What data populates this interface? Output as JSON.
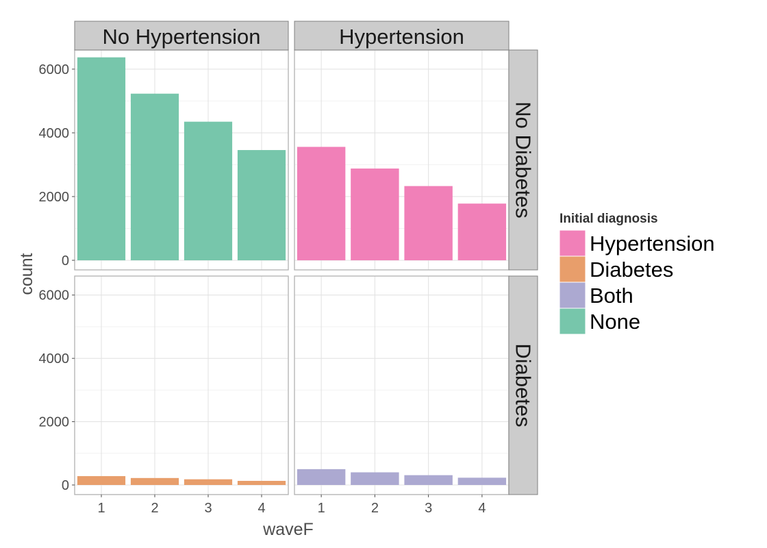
{
  "chart_data": {
    "type": "bar",
    "xlabel": "waveF",
    "ylabel": "count",
    "categories": [
      "1",
      "2",
      "3",
      "4"
    ],
    "ylim": [
      0,
      6600
    ],
    "yticks": [
      0,
      2000,
      4000,
      6000
    ],
    "grid": true,
    "legend_position": "right",
    "facet_columns": [
      "No Hypertension",
      "Hypertension"
    ],
    "facet_rows": [
      "No Diabetes",
      "Diabetes"
    ],
    "panels": [
      {
        "column": "No Hypertension",
        "row": "No Diabetes",
        "series": "None",
        "values": [
          6370,
          5230,
          4350,
          3460
        ]
      },
      {
        "column": "Hypertension",
        "row": "No Diabetes",
        "series": "Hypertension",
        "values": [
          3560,
          2880,
          2330,
          1780
        ]
      },
      {
        "column": "No Hypertension",
        "row": "Diabetes",
        "series": "Diabetes",
        "values": [
          280,
          220,
          180,
          130
        ]
      },
      {
        "column": "Hypertension",
        "row": "Diabetes",
        "series": "Both",
        "values": [
          500,
          400,
          310,
          230
        ]
      }
    ],
    "legend": {
      "title": "Initial diagnosis",
      "items": [
        {
          "name": "Hypertension",
          "color": "#f180b8"
        },
        {
          "name": "Diabetes",
          "color": "#e89e6b"
        },
        {
          "name": "Both",
          "color": "#aca9d1"
        },
        {
          "name": "None",
          "color": "#77c6ab"
        }
      ]
    }
  }
}
